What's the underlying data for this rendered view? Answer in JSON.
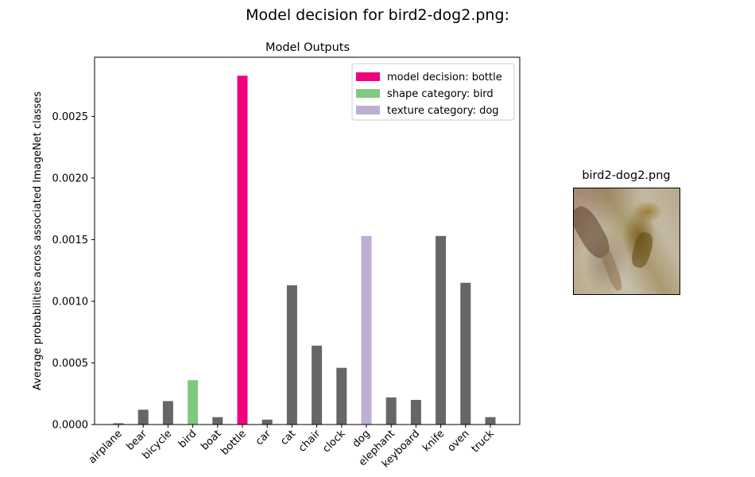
{
  "figure": {
    "suptitle": "Model decision for bird2-dog2.png:"
  },
  "chart_data": {
    "type": "bar",
    "title": "Model Outputs",
    "xlabel": "",
    "ylabel": "Average probabilities across associated ImageNet classes",
    "categories": [
      "airplane",
      "bear",
      "bicycle",
      "bird",
      "boat",
      "bottle",
      "car",
      "cat",
      "chair",
      "clock",
      "dog",
      "elephant",
      "keyboard",
      "knife",
      "oven",
      "truck"
    ],
    "values": [
      1e-05,
      0.00012,
      0.00019,
      0.00036,
      6e-05,
      0.00283,
      4e-05,
      0.00113,
      0.00064,
      0.00046,
      0.00153,
      0.00022,
      0.0002,
      0.00153,
      0.00115,
      6e-05
    ],
    "ylim": [
      0,
      0.00298
    ],
    "yticks": [
      "0.0000",
      "0.0005",
      "0.0010",
      "0.0015",
      "0.0020",
      "0.0025"
    ],
    "ytick_values": [
      0,
      0.0005,
      0.001,
      0.0015,
      0.002,
      0.0025
    ],
    "grid": false,
    "default_color": "#666666",
    "highlight_colors": {
      "bottle": "#f0027f",
      "bird": "#7fc97f",
      "dog": "#beaed4"
    },
    "legend_position": "top-right",
    "legend": [
      {
        "label": "model decision: bottle",
        "color": "#f0027f"
      },
      {
        "label": "shape category: bird",
        "color": "#7fc97f"
      },
      {
        "label": "texture category: dog",
        "color": "#beaed4"
      }
    ]
  },
  "image_panel": {
    "title": "bird2-dog2.png"
  }
}
